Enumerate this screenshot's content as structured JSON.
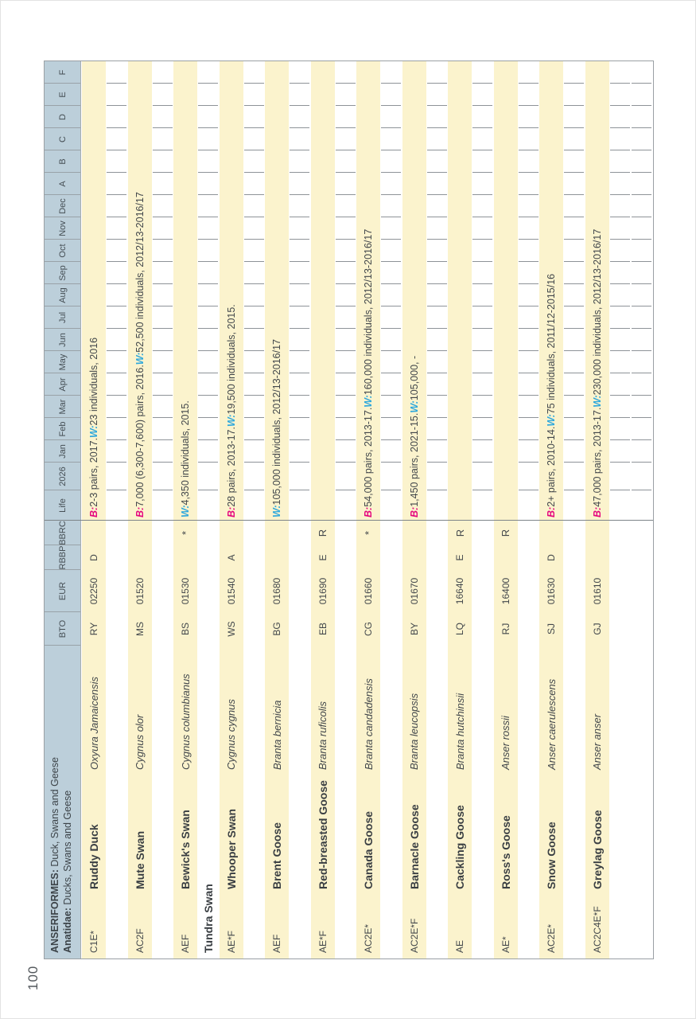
{
  "page": {
    "number": "100"
  },
  "header": {
    "order_bold": "ANSERIFORMES:",
    "order_rest": " Duck, Swans and Geese",
    "family_bold": "Anatidae:",
    "family_rest": " Ducks, Swans and Geese",
    "col_labels": {
      "bto": "BTO",
      "eur": "EUR",
      "rbbp": "RBBP",
      "bbrc": "BBRC",
      "life": "Life",
      "year": "2026"
    },
    "months": [
      "Jan",
      "Feb",
      "Mar",
      "Apr",
      "May",
      "Jun",
      "Jul",
      "Aug",
      "Sep",
      "Oct",
      "Nov",
      "Dec"
    ],
    "letters": [
      "A",
      "B",
      "C",
      "D",
      "E",
      "F"
    ]
  },
  "colors": {
    "header_blue": "#bccfda",
    "row_yellow": "#fbf3cd",
    "breeding_magenta": "#e5077e",
    "winter_cyan": "#2fa8dc",
    "text": "#42474b",
    "tick": "#8e9398",
    "border": "#9aa0a4"
  },
  "species": [
    {
      "category": "C1E*",
      "name": "Ruddy Duck",
      "sci": "Oxyura Jamaicensis",
      "bto": "RY",
      "eur": "02250",
      "rbbp": "D",
      "bbrc": "",
      "life": "B: 2-3 pairs, 2017. W: 23 individuals, 2016"
    },
    {
      "category": "AC2F",
      "name": "Mute Swan",
      "sci": "Cygnus olor",
      "bto": "MS",
      "eur": "01520",
      "rbbp": "",
      "bbrc": "",
      "life": "B: 7,000 (6,300-7,600) pairs, 2016. W: 52,500 individuals, 2012/13-2016/17"
    },
    {
      "category": "AEF",
      "name": "Bewick's Swan",
      "sci": "Cygnus columbianus",
      "bto": "BS",
      "eur": "01530",
      "rbbp": "",
      "bbrc": "*",
      "life": "W: 4,350 individuals, 2015.",
      "note_after": "Tundra Swan"
    },
    {
      "category": "AE*F",
      "name": "Whooper Swan",
      "sci": "Cygnus cygnus",
      "bto": "WS",
      "eur": "01540",
      "rbbp": "A",
      "bbrc": "",
      "life": "B: 28 pairs, 2013-17. W: 19,500 individuals, 2015."
    },
    {
      "category": "AEF",
      "name": "Brent Goose",
      "sci": "Branta bernicia",
      "bto": "BG",
      "eur": "01680",
      "rbbp": "",
      "bbrc": "",
      "life": "W: 105,000 individuals, 2012/13-2016/17"
    },
    {
      "category": "AE*F",
      "name": "Red-breasted Goose",
      "sci": "Branta ruficolis",
      "bto": "EB",
      "eur": "01690",
      "rbbp": "E",
      "bbrc": "R",
      "life": ""
    },
    {
      "category": "AC2E*",
      "name": "Canada Goose",
      "sci": "Branta candadensis",
      "bto": "CG",
      "eur": "01660",
      "rbbp": "",
      "bbrc": "*",
      "life": "B: 54,000 pairs, 2013-17. W: 160,000 individuals, 2012/13-2016/17"
    },
    {
      "category": "AC2E*F",
      "name": "Barnacle Goose",
      "sci": "Branta leucopsis",
      "bto": "BY",
      "eur": "01670",
      "rbbp": "",
      "bbrc": "",
      "life": "B: 1,450 pairs, 2021-15. W: 105,000, -"
    },
    {
      "category": "AE",
      "name": "Cackling Goose",
      "sci": "Branta hutchinsii",
      "bto": "LQ",
      "eur": "16640",
      "rbbp": "E",
      "bbrc": "R",
      "life": ""
    },
    {
      "category": "AE*",
      "name": "Ross's Goose",
      "sci": "Anser rossii",
      "bto": "RJ",
      "eur": "16400",
      "rbbp": "",
      "bbrc": "R",
      "life": ""
    },
    {
      "category": "AC2E*",
      "name": "Snow Goose",
      "sci": "Anser caerulescens",
      "bto": "SJ",
      "eur": "01630",
      "rbbp": "D",
      "bbrc": "",
      "life": "B: 2+ pairs, 2010-14. W: 75 individuals, 2011/12-2015/16"
    },
    {
      "category": "AC2C4E*F",
      "name": "Greylag Goose",
      "sci": "Anser anser",
      "bto": "GJ",
      "eur": "01610",
      "rbbp": "",
      "bbrc": "",
      "life": "B: 47,000 pairs, 2013-17. W: 230,000 individuals, 2012/13-2016/17"
    }
  ]
}
